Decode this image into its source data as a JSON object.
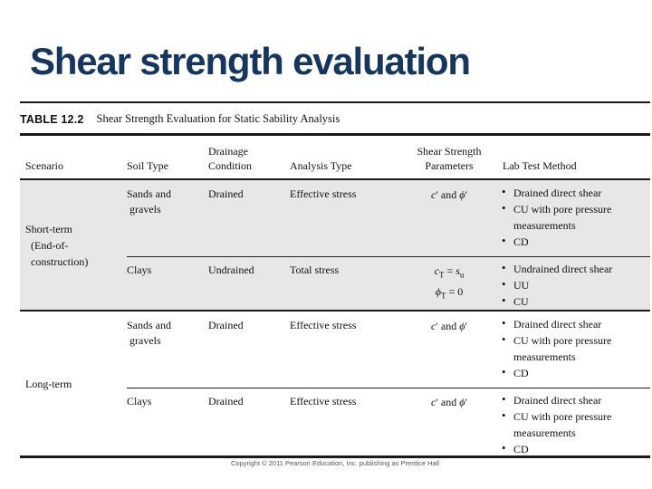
{
  "slide": {
    "title": "Shear strength evaluation"
  },
  "table": {
    "caption": {
      "label": "TABLE 12.2",
      "title": "Shear Strength Evaluation for Static Sability Analysis"
    },
    "headers": {
      "scenario": "Scenario",
      "soil": "Soil Type",
      "drainage": "Drainage\nCondition",
      "analysis": "Analysis Type",
      "params": "Shear Strength\nParameters",
      "lab": "Lab Test Method"
    },
    "groups": [
      {
        "scenario": "Short-term\n  (End-of-\n  construction)",
        "rows": [
          {
            "soil": "Sands and\n gravels",
            "drainage": "Drained",
            "analysis": "Effective stress",
            "params_html": "<i>c</i>′ and <i>ϕ</i>′",
            "lab": [
              "Drained direct shear",
              "CU with pore pressure measurements",
              "CD"
            ]
          },
          {
            "soil": "Clays",
            "drainage": "Undrained",
            "analysis": "Total stress",
            "params_html": "<i>c</i><sub>T</sub> = <i>s</i><sub>u</sub><br><i>ϕ</i><sub>T</sub> = 0",
            "lab": [
              "Undrained direct shear",
              "UU",
              "CU"
            ]
          }
        ]
      },
      {
        "scenario": "Long-term",
        "rows": [
          {
            "soil": "Sands and\n gravels",
            "drainage": "Drained",
            "analysis": "Effective stress",
            "params_html": "<i>c</i>′ and <i>ϕ</i>′",
            "lab": [
              "Drained direct shear",
              "CU with pore pressure measurements",
              "CD"
            ]
          },
          {
            "soil": "Clays",
            "drainage": "Drained",
            "analysis": "Effective stress",
            "params_html": "<i>c</i>′ and <i>ϕ</i>′",
            "lab": [
              "Drained direct shear",
              "CU with pore pressure measurements",
              "CD"
            ]
          }
        ]
      }
    ]
  },
  "footer": {
    "copyright": "Copyright © 2011 Pearson Education, Inc. publishing as Prentice Hall"
  },
  "colors": {
    "title_navy": "#17365d",
    "row_band_gray": "#e7e7e7",
    "rule_black": "#1a1a1a",
    "text": "#111111"
  }
}
